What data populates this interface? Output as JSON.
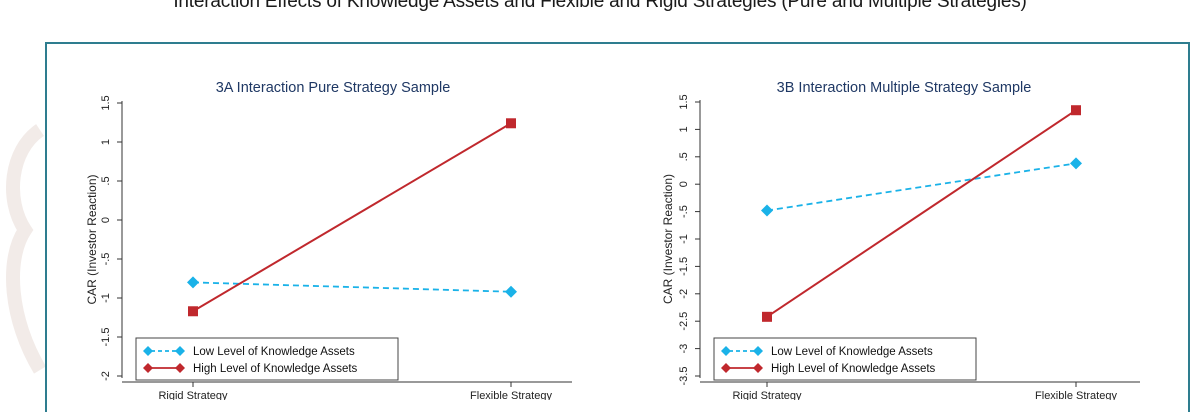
{
  "figure_title": "Interaction Effects of Knowledge Assets and Flexible and Rigid Strategies (Pure and Multiple Strategies)",
  "colors": {
    "frame": "#2e7d8f",
    "low": "#1ab2e8",
    "high": "#c0282d",
    "title": "#1f3864"
  },
  "chart_data": [
    {
      "type": "line",
      "title": "3A Interaction Pure Strategy Sample",
      "ylabel": "CAR (Investor Reaction)",
      "xlabel": "",
      "categories": [
        "Rigid Strategy",
        "Flexible Strategy"
      ],
      "ylim": [
        -2,
        1.5
      ],
      "yticks": [
        -2,
        -1.5,
        -1,
        -0.5,
        0,
        0.5,
        1,
        1.5
      ],
      "ytick_labels": [
        "-2",
        "-1.5",
        "-1",
        "-.5",
        "0",
        ".5",
        "1",
        "1.5"
      ],
      "grid": false,
      "legend": "bottom-left",
      "series": [
        {
          "name": "Low Level of Knowledge Assets",
          "values": [
            -0.8,
            -0.92
          ],
          "style": "dashed",
          "marker": "diamond",
          "color": "#1ab2e8"
        },
        {
          "name": "High Level of Knowledge Assets",
          "values": [
            -1.17,
            1.24
          ],
          "style": "solid",
          "marker": "square",
          "color": "#c0282d"
        }
      ]
    },
    {
      "type": "line",
      "title": "3B Interaction Multiple Strategy Sample",
      "ylabel": "CAR (Investor Reaction)",
      "xlabel": "",
      "categories": [
        "Rigid Strategy",
        "Flexible Strategy"
      ],
      "ylim": [
        -3.5,
        1.5
      ],
      "yticks": [
        -3.5,
        -3,
        -2.5,
        -2,
        -1.5,
        -1,
        -0.5,
        0,
        0.5,
        1,
        1.5
      ],
      "ytick_labels": [
        "-3.5",
        "-3",
        "-2.5",
        "-2",
        "-1.5",
        "-1",
        "-.5",
        "0",
        ".5",
        "1",
        "1.5"
      ],
      "grid": false,
      "legend": "bottom-left",
      "series": [
        {
          "name": "Low Level of Knowledge Assets",
          "values": [
            -0.48,
            0.38
          ],
          "style": "dashed",
          "marker": "diamond",
          "color": "#1ab2e8"
        },
        {
          "name": "High Level of Knowledge Assets",
          "values": [
            -2.42,
            1.35
          ],
          "style": "solid",
          "marker": "square",
          "color": "#c0282d"
        }
      ]
    }
  ]
}
